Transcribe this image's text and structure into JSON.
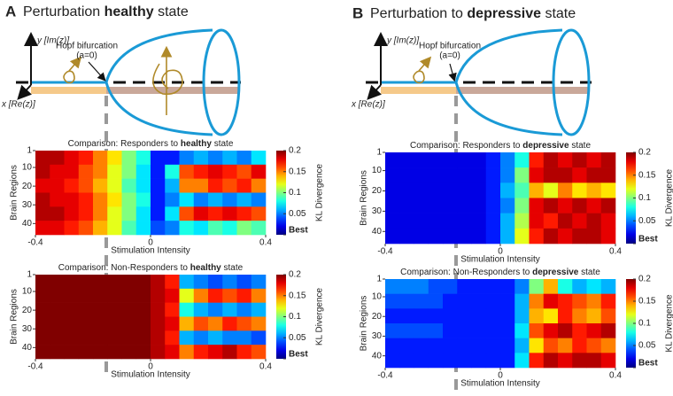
{
  "panels": [
    {
      "label": "A",
      "title": [
        "Perturbation ",
        "healthy",
        " state"
      ],
      "diagram": {
        "y_axis": "y [Im(z)]",
        "x_axis": "x [Re(z)]",
        "hopf": "Hopf bifurcation",
        "hopf_sub": "(a=0)"
      }
    },
    {
      "label": "B",
      "title": [
        "Perturbation to ",
        "depressive",
        " state"
      ],
      "diagram": {
        "y_axis": "y [Im(z)]",
        "x_axis": "x [Re(z)]",
        "hopf": "Hopf bifurcation",
        "hopf_sub": "(a=0)"
      }
    }
  ],
  "chart_data": [
    {
      "type": "heatmap",
      "title": [
        "Comparison: Responders to ",
        "healthy",
        " state"
      ],
      "xlabel": "Stimulation Intensity",
      "ylabel": "Brain Regions",
      "xlim": [
        -0.4,
        0.4
      ],
      "xticks": [
        -0.4,
        0,
        0.4
      ],
      "ylim": [
        1,
        46
      ],
      "yticks": [
        1,
        10,
        20,
        30,
        40
      ],
      "xbins": [
        -0.4,
        -0.35,
        -0.3,
        -0.25,
        -0.2,
        -0.15,
        -0.1,
        -0.05,
        0,
        0.05,
        0.1,
        0.15,
        0.2,
        0.25,
        0.3,
        0.35,
        0.4
      ],
      "ybins": [
        1,
        8.5,
        16,
        23.5,
        31,
        38.5,
        46
      ],
      "z": [
        [
          0.19,
          0.19,
          0.18,
          0.17,
          0.15,
          0.13,
          0.1,
          0.08,
          0.03,
          0.03,
          0.05,
          0.06,
          0.05,
          0.06,
          0.05,
          0.07
        ],
        [
          0.19,
          0.18,
          0.18,
          0.16,
          0.15,
          0.12,
          0.1,
          0.07,
          0.03,
          0.08,
          0.16,
          0.17,
          0.18,
          0.17,
          0.16,
          0.18
        ],
        [
          0.18,
          0.18,
          0.17,
          0.16,
          0.14,
          0.12,
          0.09,
          0.07,
          0.03,
          0.06,
          0.15,
          0.15,
          0.17,
          0.16,
          0.17,
          0.15
        ],
        [
          0.19,
          0.18,
          0.18,
          0.17,
          0.15,
          0.13,
          0.1,
          0.08,
          0.03,
          0.05,
          0.07,
          0.05,
          0.06,
          0.05,
          0.06,
          0.05
        ],
        [
          0.19,
          0.19,
          0.18,
          0.17,
          0.15,
          0.12,
          0.1,
          0.07,
          0.03,
          0.07,
          0.16,
          0.18,
          0.17,
          0.18,
          0.17,
          0.16
        ],
        [
          0.18,
          0.18,
          0.17,
          0.16,
          0.14,
          0.12,
          0.09,
          0.07,
          0.04,
          0.05,
          0.08,
          0.07,
          0.09,
          0.08,
          0.1,
          0.09
        ]
      ],
      "colorbar": {
        "label": "KL Divergence",
        "lim": [
          0,
          0.2
        ],
        "ticks": [
          {
            "value": 0,
            "label": "Best"
          },
          0.05,
          0.1,
          0.15,
          0.2
        ]
      }
    },
    {
      "type": "heatmap",
      "title": [
        "Comparison: Non-Responders to ",
        "healthy",
        " state"
      ],
      "xlabel": "Stimulation Intensity",
      "ylabel": "Brain Regions",
      "xlim": [
        -0.4,
        0.4
      ],
      "xticks": [
        -0.4,
        0,
        0.4
      ],
      "ylim": [
        1,
        46
      ],
      "yticks": [
        1,
        10,
        20,
        30,
        40
      ],
      "xbins": [
        -0.4,
        -0.35,
        -0.3,
        -0.25,
        -0.2,
        -0.15,
        -0.1,
        -0.05,
        0,
        0.05,
        0.1,
        0.15,
        0.2,
        0.25,
        0.3,
        0.35,
        0.4
      ],
      "ybins": [
        1,
        8.5,
        16,
        23.5,
        31,
        38.5,
        46
      ],
      "z": [
        [
          0.2,
          0.2,
          0.2,
          0.2,
          0.2,
          0.2,
          0.2,
          0.2,
          0.19,
          0.17,
          0.06,
          0.05,
          0.04,
          0.05,
          0.04,
          0.05
        ],
        [
          0.2,
          0.2,
          0.2,
          0.2,
          0.2,
          0.2,
          0.2,
          0.2,
          0.19,
          0.18,
          0.12,
          0.15,
          0.17,
          0.16,
          0.17,
          0.15
        ],
        [
          0.2,
          0.2,
          0.2,
          0.2,
          0.2,
          0.2,
          0.2,
          0.2,
          0.19,
          0.17,
          0.08,
          0.06,
          0.05,
          0.06,
          0.05,
          0.06
        ],
        [
          0.2,
          0.2,
          0.2,
          0.2,
          0.2,
          0.2,
          0.2,
          0.2,
          0.19,
          0.18,
          0.14,
          0.16,
          0.15,
          0.17,
          0.16,
          0.15
        ],
        [
          0.2,
          0.2,
          0.2,
          0.2,
          0.2,
          0.2,
          0.2,
          0.2,
          0.19,
          0.17,
          0.06,
          0.05,
          0.06,
          0.05,
          0.05,
          0.04
        ],
        [
          0.2,
          0.2,
          0.2,
          0.2,
          0.2,
          0.2,
          0.2,
          0.2,
          0.19,
          0.18,
          0.15,
          0.17,
          0.18,
          0.19,
          0.17,
          0.16
        ]
      ],
      "colorbar": {
        "label": "KL Divergence",
        "lim": [
          0,
          0.2
        ],
        "ticks": [
          {
            "value": 0,
            "label": "Best"
          },
          0.05,
          0.1,
          0.15,
          0.2
        ]
      }
    },
    {
      "type": "heatmap",
      "title": [
        "Comparison: Responders to ",
        "depressive",
        " state"
      ],
      "xlabel": "Stimulation Intensity",
      "ylabel": "Brain Regions",
      "xlim": [
        -0.4,
        0.4
      ],
      "xticks": [
        -0.4,
        0,
        0.4
      ],
      "ylim": [
        1,
        46
      ],
      "yticks": [
        1,
        10,
        20,
        30,
        40
      ],
      "xbins": [
        -0.4,
        -0.35,
        -0.3,
        -0.25,
        -0.2,
        -0.15,
        -0.1,
        -0.05,
        0,
        0.05,
        0.1,
        0.15,
        0.2,
        0.25,
        0.3,
        0.35,
        0.4
      ],
      "ybins": [
        1,
        8.5,
        16,
        23.5,
        31,
        38.5,
        46
      ],
      "z": [
        [
          0.02,
          0.02,
          0.02,
          0.02,
          0.02,
          0.02,
          0.02,
          0.03,
          0.05,
          0.08,
          0.17,
          0.19,
          0.18,
          0.19,
          0.18,
          0.19
        ],
        [
          0.02,
          0.02,
          0.02,
          0.02,
          0.02,
          0.02,
          0.02,
          0.03,
          0.05,
          0.1,
          0.18,
          0.19,
          0.19,
          0.18,
          0.19,
          0.19
        ],
        [
          0.02,
          0.02,
          0.02,
          0.02,
          0.02,
          0.02,
          0.02,
          0.03,
          0.06,
          0.09,
          0.14,
          0.12,
          0.15,
          0.13,
          0.14,
          0.13
        ],
        [
          0.02,
          0.02,
          0.02,
          0.02,
          0.02,
          0.02,
          0.02,
          0.03,
          0.05,
          0.1,
          0.18,
          0.19,
          0.18,
          0.19,
          0.18,
          0.19
        ],
        [
          0.02,
          0.02,
          0.02,
          0.02,
          0.02,
          0.02,
          0.02,
          0.03,
          0.06,
          0.11,
          0.18,
          0.17,
          0.19,
          0.18,
          0.19,
          0.18
        ],
        [
          0.02,
          0.02,
          0.02,
          0.02,
          0.02,
          0.02,
          0.02,
          0.03,
          0.06,
          0.12,
          0.17,
          0.19,
          0.18,
          0.19,
          0.19,
          0.18
        ]
      ],
      "colorbar": {
        "label": "KL Divergence",
        "lim": [
          0,
          0.2
        ],
        "ticks": [
          {
            "value": 0,
            "label": "Best"
          },
          0.05,
          0.1,
          0.15,
          0.2
        ]
      }
    },
    {
      "type": "heatmap",
      "title": [
        "Comparison: Non-Responders to ",
        "depressive",
        " state"
      ],
      "xlabel": "Stimulation Intensity",
      "ylabel": "Brain Regions",
      "xlim": [
        -0.4,
        0.4
      ],
      "xticks": [
        -0.4,
        0,
        0.4
      ],
      "ylim": [
        1,
        46
      ],
      "yticks": [
        1,
        10,
        20,
        30,
        40
      ],
      "xbins": [
        -0.4,
        -0.35,
        -0.3,
        -0.25,
        -0.2,
        -0.15,
        -0.1,
        -0.05,
        0,
        0.05,
        0.1,
        0.15,
        0.2,
        0.25,
        0.3,
        0.35,
        0.4
      ],
      "ybins": [
        1,
        8.5,
        16,
        23.5,
        31,
        38.5,
        46
      ],
      "z": [
        [
          0.05,
          0.05,
          0.05,
          0.04,
          0.04,
          0.03,
          0.03,
          0.03,
          0.03,
          0.05,
          0.1,
          0.14,
          0.08,
          0.06,
          0.07,
          0.06
        ],
        [
          0.04,
          0.04,
          0.04,
          0.04,
          0.03,
          0.03,
          0.03,
          0.03,
          0.03,
          0.06,
          0.15,
          0.18,
          0.17,
          0.16,
          0.15,
          0.17
        ],
        [
          0.03,
          0.03,
          0.03,
          0.03,
          0.03,
          0.03,
          0.03,
          0.03,
          0.03,
          0.06,
          0.14,
          0.13,
          0.17,
          0.15,
          0.14,
          0.16
        ],
        [
          0.04,
          0.04,
          0.04,
          0.04,
          0.03,
          0.03,
          0.03,
          0.03,
          0.03,
          0.07,
          0.16,
          0.18,
          0.19,
          0.17,
          0.18,
          0.19
        ],
        [
          0.03,
          0.03,
          0.03,
          0.03,
          0.03,
          0.03,
          0.03,
          0.03,
          0.03,
          0.06,
          0.13,
          0.16,
          0.15,
          0.17,
          0.16,
          0.15
        ],
        [
          0.03,
          0.03,
          0.03,
          0.03,
          0.03,
          0.03,
          0.03,
          0.03,
          0.03,
          0.07,
          0.17,
          0.19,
          0.18,
          0.19,
          0.19,
          0.18
        ]
      ],
      "colorbar": {
        "label": "KL Divergence",
        "lim": [
          0,
          0.2
        ],
        "ticks": [
          {
            "value": 0,
            "label": "Best"
          },
          0.05,
          0.1,
          0.15,
          0.2
        ]
      }
    }
  ]
}
